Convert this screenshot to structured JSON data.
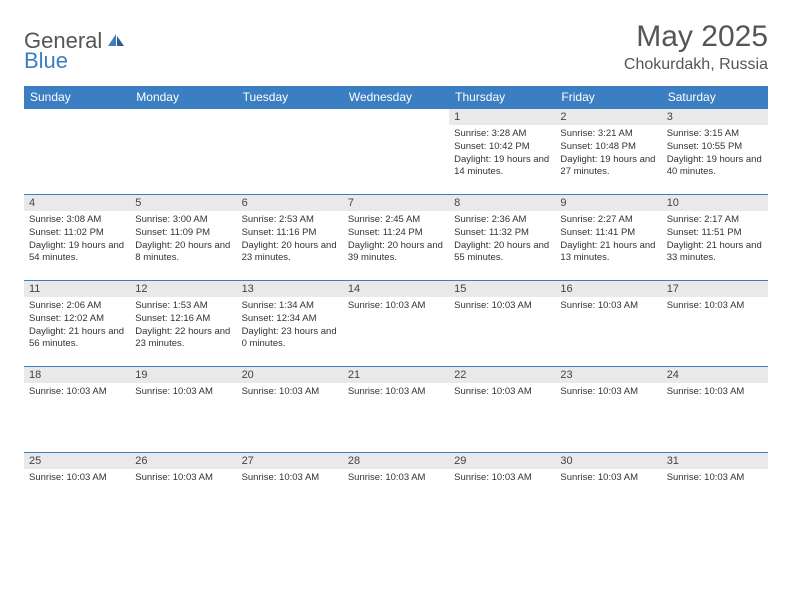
{
  "brand": {
    "part1": "General",
    "part2": "Blue"
  },
  "title": "May 2025",
  "location": "Chokurdakh, Russia",
  "colors": {
    "accent": "#3b7ec2",
    "header_bg": "#3b7ec2",
    "daybar_bg": "#e9e9e9",
    "text": "#333333"
  },
  "weekdays": [
    "Sunday",
    "Monday",
    "Tuesday",
    "Wednesday",
    "Thursday",
    "Friday",
    "Saturday"
  ],
  "weeks": [
    [
      {
        "num": "",
        "lines": []
      },
      {
        "num": "",
        "lines": []
      },
      {
        "num": "",
        "lines": []
      },
      {
        "num": "",
        "lines": []
      },
      {
        "num": "1",
        "lines": [
          "Sunrise: 3:28 AM",
          "Sunset: 10:42 PM",
          "Daylight: 19 hours and 14 minutes."
        ]
      },
      {
        "num": "2",
        "lines": [
          "Sunrise: 3:21 AM",
          "Sunset: 10:48 PM",
          "Daylight: 19 hours and 27 minutes."
        ]
      },
      {
        "num": "3",
        "lines": [
          "Sunrise: 3:15 AM",
          "Sunset: 10:55 PM",
          "Daylight: 19 hours and 40 minutes."
        ]
      }
    ],
    [
      {
        "num": "4",
        "lines": [
          "Sunrise: 3:08 AM",
          "Sunset: 11:02 PM",
          "Daylight: 19 hours and 54 minutes."
        ]
      },
      {
        "num": "5",
        "lines": [
          "Sunrise: 3:00 AM",
          "Sunset: 11:09 PM",
          "Daylight: 20 hours and 8 minutes."
        ]
      },
      {
        "num": "6",
        "lines": [
          "Sunrise: 2:53 AM",
          "Sunset: 11:16 PM",
          "Daylight: 20 hours and 23 minutes."
        ]
      },
      {
        "num": "7",
        "lines": [
          "Sunrise: 2:45 AM",
          "Sunset: 11:24 PM",
          "Daylight: 20 hours and 39 minutes."
        ]
      },
      {
        "num": "8",
        "lines": [
          "Sunrise: 2:36 AM",
          "Sunset: 11:32 PM",
          "Daylight: 20 hours and 55 minutes."
        ]
      },
      {
        "num": "9",
        "lines": [
          "Sunrise: 2:27 AM",
          "Sunset: 11:41 PM",
          "Daylight: 21 hours and 13 minutes."
        ]
      },
      {
        "num": "10",
        "lines": [
          "Sunrise: 2:17 AM",
          "Sunset: 11:51 PM",
          "Daylight: 21 hours and 33 minutes."
        ]
      }
    ],
    [
      {
        "num": "11",
        "lines": [
          "Sunrise: 2:06 AM",
          "Sunset: 12:02 AM",
          "Daylight: 21 hours and 56 minutes."
        ]
      },
      {
        "num": "12",
        "lines": [
          "Sunrise: 1:53 AM",
          "Sunset: 12:16 AM",
          "Daylight: 22 hours and 23 minutes."
        ]
      },
      {
        "num": "13",
        "lines": [
          "Sunrise: 1:34 AM",
          "Sunset: 12:34 AM",
          "Daylight: 23 hours and 0 minutes."
        ]
      },
      {
        "num": "14",
        "lines": [
          "Sunrise: 10:03 AM"
        ]
      },
      {
        "num": "15",
        "lines": [
          "Sunrise: 10:03 AM"
        ]
      },
      {
        "num": "16",
        "lines": [
          "Sunrise: 10:03 AM"
        ]
      },
      {
        "num": "17",
        "lines": [
          "Sunrise: 10:03 AM"
        ]
      }
    ],
    [
      {
        "num": "18",
        "lines": [
          "Sunrise: 10:03 AM"
        ]
      },
      {
        "num": "19",
        "lines": [
          "Sunrise: 10:03 AM"
        ]
      },
      {
        "num": "20",
        "lines": [
          "Sunrise: 10:03 AM"
        ]
      },
      {
        "num": "21",
        "lines": [
          "Sunrise: 10:03 AM"
        ]
      },
      {
        "num": "22",
        "lines": [
          "Sunrise: 10:03 AM"
        ]
      },
      {
        "num": "23",
        "lines": [
          "Sunrise: 10:03 AM"
        ]
      },
      {
        "num": "24",
        "lines": [
          "Sunrise: 10:03 AM"
        ]
      }
    ],
    [
      {
        "num": "25",
        "lines": [
          "Sunrise: 10:03 AM"
        ]
      },
      {
        "num": "26",
        "lines": [
          "Sunrise: 10:03 AM"
        ]
      },
      {
        "num": "27",
        "lines": [
          "Sunrise: 10:03 AM"
        ]
      },
      {
        "num": "28",
        "lines": [
          "Sunrise: 10:03 AM"
        ]
      },
      {
        "num": "29",
        "lines": [
          "Sunrise: 10:03 AM"
        ]
      },
      {
        "num": "30",
        "lines": [
          "Sunrise: 10:03 AM"
        ]
      },
      {
        "num": "31",
        "lines": [
          "Sunrise: 10:03 AM"
        ]
      }
    ]
  ]
}
